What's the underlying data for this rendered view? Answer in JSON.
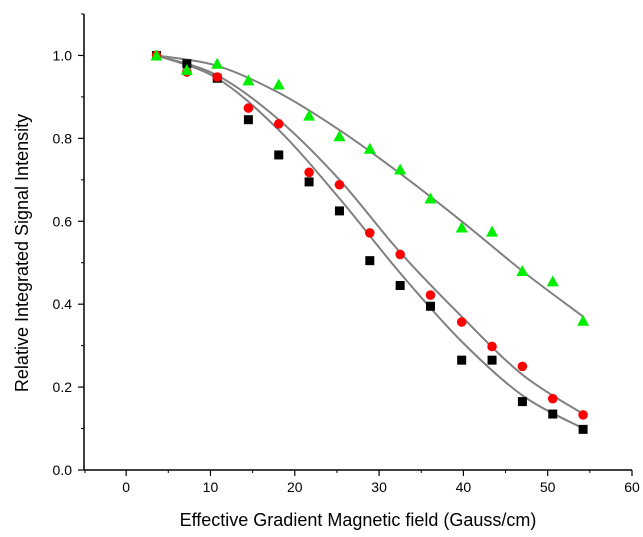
{
  "chart_data": {
    "type": "scatter",
    "title": "",
    "xlabel": "Effective Gradient Magnetic field (Gauss/cm)",
    "ylabel": "Relative Integrated Signal Intensity",
    "xlim": [
      -5,
      60
    ],
    "ylim": [
      0.0,
      1.1
    ],
    "xticks": [
      0,
      10,
      20,
      30,
      40,
      50,
      60
    ],
    "yticks": [
      0.0,
      0.2,
      0.4,
      0.6,
      0.8,
      1.0
    ],
    "xtick_labels": [
      "0",
      "10",
      "20",
      "30",
      "40",
      "50",
      "60"
    ],
    "ytick_labels": [
      "0.0",
      "0.2",
      "0.4",
      "0.6",
      "0.8",
      "1.0"
    ],
    "grid": false,
    "legend": false,
    "series": [
      {
        "marker": "square",
        "color": "#000000",
        "x": [
          3.6,
          7.2,
          10.8,
          14.5,
          18.1,
          21.7,
          25.3,
          28.9,
          32.5,
          36.1,
          39.8,
          43.4,
          47.0,
          50.6,
          54.2
        ],
        "y": [
          1.0,
          0.98,
          0.945,
          0.845,
          0.76,
          0.695,
          0.625,
          0.505,
          0.445,
          0.395,
          0.265,
          0.265,
          0.165,
          0.135,
          0.098
        ]
      },
      {
        "marker": "circle",
        "color": "#ff0000",
        "x": [
          3.6,
          7.2,
          10.8,
          14.5,
          18.1,
          21.7,
          25.3,
          28.9,
          32.5,
          36.1,
          39.8,
          43.4,
          47.0,
          50.6,
          54.2
        ],
        "y": [
          1.0,
          0.96,
          0.948,
          0.873,
          0.835,
          0.718,
          0.688,
          0.572,
          0.52,
          0.422,
          0.357,
          0.298,
          0.25,
          0.172,
          0.133
        ]
      },
      {
        "marker": "triangle",
        "color": "#00ee00",
        "x": [
          3.6,
          7.2,
          10.8,
          14.5,
          18.1,
          21.7,
          25.3,
          28.9,
          32.5,
          36.1,
          39.8,
          43.4,
          47.0,
          50.6,
          54.2
        ],
        "y": [
          1.0,
          0.965,
          0.98,
          0.94,
          0.93,
          0.855,
          0.805,
          0.775,
          0.725,
          0.655,
          0.585,
          0.575,
          0.48,
          0.455,
          0.36
        ]
      }
    ],
    "fit_curves": [
      {
        "color": "#808080",
        "x": [
          3.6,
          10.8,
          18.1,
          25.3,
          32.5,
          39.8,
          47.0,
          54.2
        ],
        "y": [
          1.0,
          0.945,
          0.82,
          0.655,
          0.475,
          0.31,
          0.18,
          0.1
        ]
      },
      {
        "color": "#808080",
        "x": [
          3.6,
          10.8,
          18.1,
          25.3,
          32.5,
          39.8,
          47.0,
          54.2
        ],
        "y": [
          1.0,
          0.952,
          0.845,
          0.7,
          0.525,
          0.37,
          0.23,
          0.135
        ]
      },
      {
        "color": "#808080",
        "x": [
          3.6,
          10.8,
          18.1,
          25.3,
          32.5,
          39.8,
          47.0,
          54.2
        ],
        "y": [
          1.0,
          0.975,
          0.91,
          0.82,
          0.715,
          0.6,
          0.48,
          0.37
        ]
      }
    ]
  }
}
